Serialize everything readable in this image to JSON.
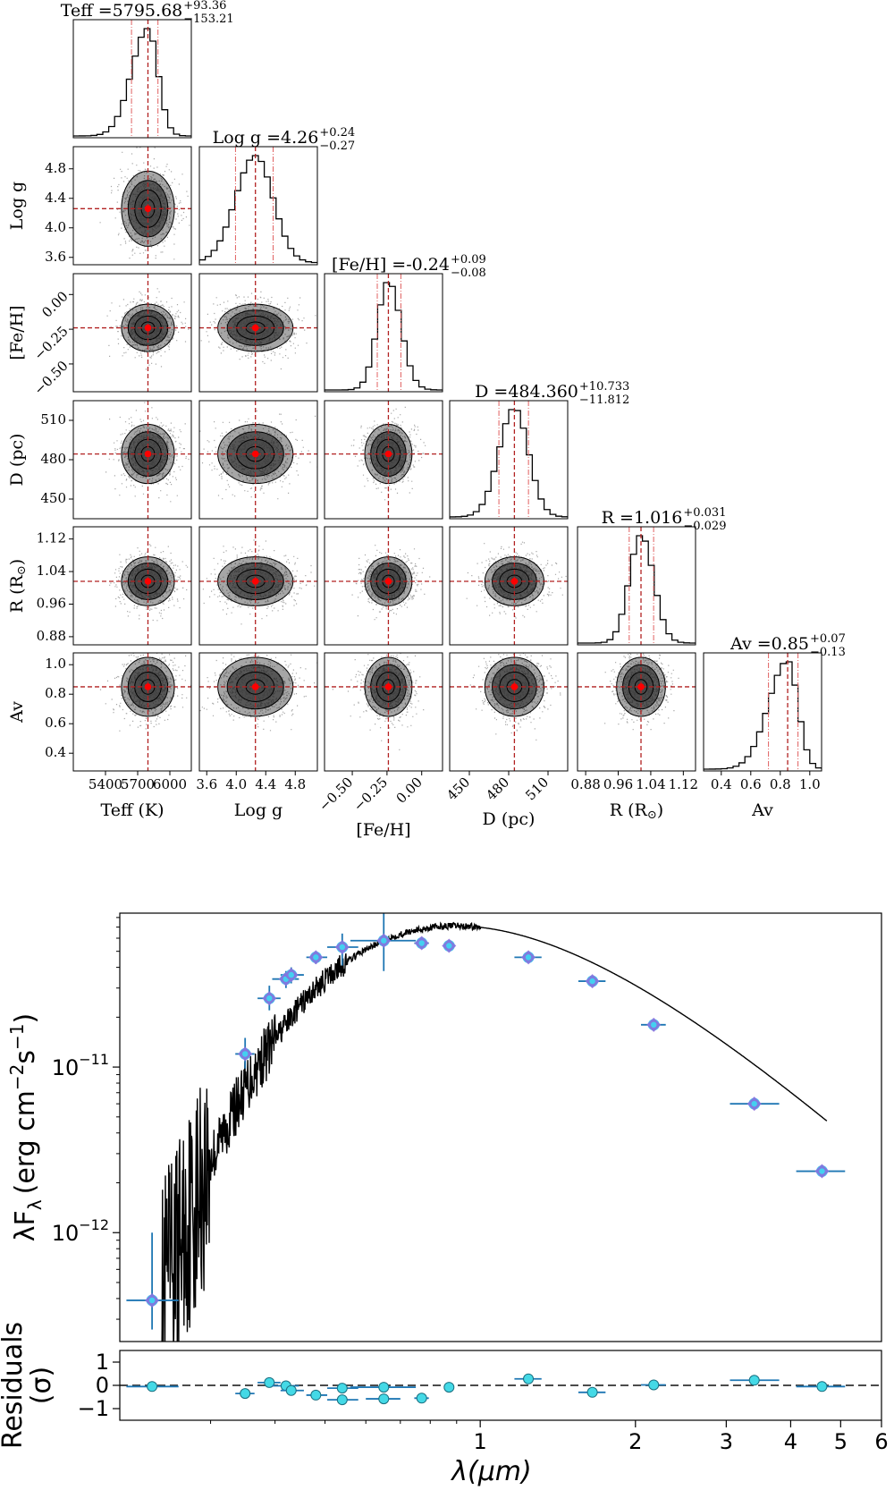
{
  "chart_data": [
    {
      "type": "corner",
      "parameters": [
        {
          "name": "Teff",
          "label": "Teff (K)",
          "median": 5795.68,
          "err_plus": 93.36,
          "err_minus": 153.21,
          "median_text": "5795.68",
          "err_plus_text": "93.36",
          "err_minus_text": "153.21",
          "range": [
            5100,
            6200
          ],
          "ticks": [
            5400,
            5700,
            6000
          ],
          "tick_labels": [
            "5400",
            "5700",
            "6000"
          ]
        },
        {
          "name": "Log g",
          "label": "Log g",
          "median": 4.26,
          "err_plus": 0.24,
          "err_minus": 0.27,
          "median_text": "4.26",
          "err_plus_text": "0.24",
          "err_minus_text": "0.27",
          "range": [
            3.5,
            5.1
          ],
          "ticks": [
            3.6,
            4.0,
            4.4,
            4.8
          ],
          "tick_labels": [
            "3.6",
            "4.0",
            "4.4",
            "4.8"
          ]
        },
        {
          "name": "[Fe/H]",
          "label": "[Fe/H]",
          "median": -0.24,
          "err_plus": 0.09,
          "err_minus": 0.08,
          "median_text": "-0.24",
          "err_plus_text": "0.09",
          "err_minus_text": "0.08",
          "range": [
            -0.7,
            0.15
          ],
          "ticks": [
            -0.5,
            -0.25,
            0.0
          ],
          "tick_labels": [
            "−0.50",
            "−0.25",
            "0.00"
          ]
        },
        {
          "name": "D",
          "label": "D (pc)",
          "median": 484.36,
          "err_plus": 10.733,
          "err_minus": 11.812,
          "median_text": "484.360",
          "err_plus_text": "10.733",
          "err_minus_text": "11.812",
          "range": [
            435,
            525
          ],
          "ticks": [
            450,
            480,
            510
          ],
          "tick_labels": [
            "450",
            "480",
            "510"
          ]
        },
        {
          "name": "R",
          "label": "R (R",
          "label_suffix": ")",
          "median": 1.016,
          "err_plus": 0.031,
          "err_minus": 0.029,
          "median_text": "1.016",
          "err_plus_text": "0.031",
          "err_minus_text": "0.029",
          "range": [
            0.86,
            1.15
          ],
          "ticks": [
            0.88,
            0.96,
            1.04,
            1.12
          ],
          "tick_labels": [
            "0.88",
            "0.96",
            "1.04",
            "1.12"
          ]
        },
        {
          "name": "Av",
          "label": "Av",
          "median": 0.85,
          "err_plus": 0.07,
          "err_minus": 0.13,
          "median_text": "0.85",
          "err_plus_text": "0.07",
          "err_minus_text": "0.13",
          "range": [
            0.28,
            1.08
          ],
          "ticks": [
            0.4,
            0.6,
            0.8,
            1.0
          ],
          "tick_labels": [
            "0.4",
            "0.6",
            "0.8",
            "1.0"
          ]
        }
      ],
      "title_prefix_eq": " =",
      "colors": {
        "median_line": "#b22222",
        "quantile_line": "#e06060",
        "marker": "#ff0000",
        "histogram": "#000000"
      }
    },
    {
      "type": "scatter",
      "subtype": "SED",
      "xscale": "log",
      "yscale": "log",
      "xlim": [
        0.2,
        6.0
      ],
      "ylim": [
        2.2e-13,
        8.5e-11
      ],
      "ytick_values": [
        1e-11,
        1e-12
      ],
      "ylabel_main": "λF",
      "ylabel_sub": "λ",
      "ylabel_units": "(erg cm",
      "ylabel_exp1": "−2",
      "ylabel_mid": "s",
      "ylabel_exp2": "−1",
      "ylabel_close": ")",
      "ytick_base": "10",
      "ytick_exps": [
        "−11",
        "−12"
      ],
      "points": [
        {
          "x": 0.231,
          "y": 3.9e-13,
          "xerr": [
            0.206,
            0.26
          ],
          "yerr": [
            2.6e-13,
            1e-12
          ]
        },
        {
          "x": 0.35,
          "y": 1.2e-11,
          "xerr": [
            0.335,
            0.365
          ],
          "yerr": [
            9.8e-12,
            1.5e-11
          ]
        },
        {
          "x": 0.39,
          "y": 2.6e-11,
          "xerr": [
            0.37,
            0.41
          ],
          "yerr": [
            2.2e-11,
            3.1e-11
          ]
        },
        {
          "x": 0.42,
          "y": 3.4e-11,
          "xerr": [
            0.395,
            0.445
          ],
          "yerr": [
            3e-11,
            3.8e-11
          ]
        },
        {
          "x": 0.43,
          "y": 3.6e-11,
          "xerr": [
            0.41,
            0.455
          ],
          "yerr": [
            3.2e-11,
            4e-11
          ]
        },
        {
          "x": 0.48,
          "y": 4.6e-11,
          "xerr": [
            0.46,
            0.505
          ],
          "yerr": [
            4.2e-11,
            5e-11
          ]
        },
        {
          "x": 0.54,
          "y": 5.3e-11,
          "xerr": [
            0.505,
            0.58
          ],
          "yerr": [
            4.1e-11,
            6.4e-11
          ]
        },
        {
          "x": 0.65,
          "y": 5.8e-11,
          "xerr": [
            0.56,
            0.75
          ],
          "yerr": [
            3.8e-11,
            8.5e-11
          ]
        },
        {
          "x": 0.77,
          "y": 5.6e-11,
          "xerr": [
            0.745,
            0.795
          ],
          "yerr": [
            5.3e-11,
            5.9e-11
          ]
        },
        {
          "x": 0.87,
          "y": 5.4e-11,
          "xerr": [
            0.855,
            0.885
          ],
          "yerr": [
            5.1e-11,
            5.7e-11
          ]
        },
        {
          "x": 1.24,
          "y": 4.6e-11,
          "xerr": [
            1.165,
            1.315
          ],
          "yerr": [
            4.4e-11,
            4.8e-11
          ]
        },
        {
          "x": 1.65,
          "y": 3.3e-11,
          "xerr": [
            1.55,
            1.75
          ],
          "yerr": [
            3.15e-11,
            3.45e-11
          ]
        },
        {
          "x": 2.17,
          "y": 1.8e-11,
          "xerr": [
            2.05,
            2.29
          ],
          "yerr": [
            1.72e-11,
            1.88e-11
          ]
        },
        {
          "x": 3.4,
          "y": 6e-12,
          "xerr": [
            3.05,
            3.8
          ],
          "yerr": [
            5.8e-12,
            6.2e-12
          ]
        },
        {
          "x": 4.6,
          "y": 2.35e-12,
          "xerr": [
            4.1,
            5.1
          ],
          "yerr": [
            2.3e-12,
            2.4e-12
          ]
        }
      ],
      "colors": {
        "marker_outer": "#8a6bdc",
        "marker_inner": "#44d0f0",
        "errorbar": "#1f77b4",
        "model": "#000000"
      }
    },
    {
      "type": "scatter",
      "subtype": "residuals",
      "xscale": "log",
      "xlim": [
        0.2,
        6.0
      ],
      "ylim": [
        -1.5,
        1.5
      ],
      "yticks": [
        1,
        0,
        -1
      ],
      "ytick_labels": [
        "1",
        "0",
        "−1"
      ],
      "xticks": [
        1,
        2,
        3,
        4,
        5,
        6
      ],
      "xtick_labels": [
        "1",
        "2",
        "3",
        "4",
        "5",
        "6"
      ],
      "ylabel_line1": "Residuals",
      "ylabel_line2": "(σ)",
      "xlabel": "λ(μm)",
      "points": [
        {
          "x": 0.231,
          "y": -0.05,
          "xerr": [
            0.206,
            0.26
          ]
        },
        {
          "x": 0.35,
          "y": -0.35,
          "xerr": [
            0.335,
            0.365
          ]
        },
        {
          "x": 0.39,
          "y": 0.12,
          "xerr": [
            0.37,
            0.41
          ]
        },
        {
          "x": 0.42,
          "y": -0.02,
          "xerr": [
            0.395,
            0.445
          ]
        },
        {
          "x": 0.43,
          "y": -0.22,
          "xerr": [
            0.41,
            0.455
          ]
        },
        {
          "x": 0.48,
          "y": -0.42,
          "xerr": [
            0.46,
            0.505
          ]
        },
        {
          "x": 0.54,
          "y": -0.12,
          "xerr": [
            0.505,
            0.58
          ]
        },
        {
          "x": 0.54,
          "y": -0.62,
          "xerr": [
            0.505,
            0.58
          ]
        },
        {
          "x": 0.65,
          "y": -0.08,
          "xerr": [
            0.56,
            0.75
          ]
        },
        {
          "x": 0.65,
          "y": -0.58,
          "xerr": [
            0.6,
            0.7
          ]
        },
        {
          "x": 0.77,
          "y": -0.55,
          "xerr": [
            0.745,
            0.795
          ]
        },
        {
          "x": 0.87,
          "y": -0.08,
          "xerr": [
            0.855,
            0.885
          ]
        },
        {
          "x": 1.24,
          "y": 0.28,
          "xerr": [
            1.165,
            1.315
          ]
        },
        {
          "x": 1.65,
          "y": -0.3,
          "xerr": [
            1.55,
            1.75
          ]
        },
        {
          "x": 2.17,
          "y": 0.02,
          "xerr": [
            2.05,
            2.29
          ]
        },
        {
          "x": 3.4,
          "y": 0.22,
          "xerr": [
            3.05,
            3.8
          ]
        },
        {
          "x": 4.6,
          "y": -0.05,
          "xerr": [
            4.1,
            5.1
          ]
        }
      ],
      "colors": {
        "marker": "#44d9e6",
        "errorbar": "#1f77b4",
        "zero_line": "#333333"
      }
    }
  ]
}
